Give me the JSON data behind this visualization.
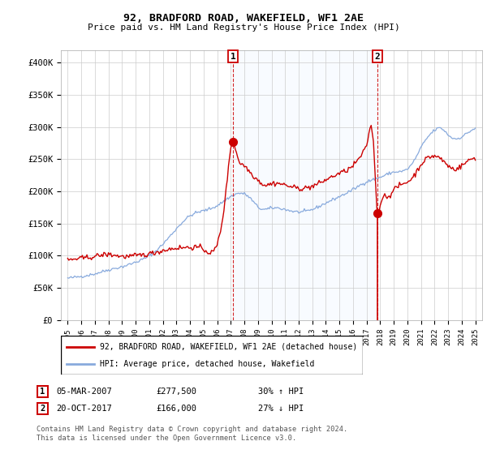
{
  "title": "92, BRADFORD ROAD, WAKEFIELD, WF1 2AE",
  "subtitle": "Price paid vs. HM Land Registry's House Price Index (HPI)",
  "ylabel_ticks": [
    "£0",
    "£50K",
    "£100K",
    "£150K",
    "£200K",
    "£250K",
    "£300K",
    "£350K",
    "£400K"
  ],
  "ytick_values": [
    0,
    50000,
    100000,
    150000,
    200000,
    250000,
    300000,
    350000,
    400000
  ],
  "ylim": [
    0,
    420000
  ],
  "xlim_start": 1994.5,
  "xlim_end": 2025.5,
  "legend_line1": "92, BRADFORD ROAD, WAKEFIELD, WF1 2AE (detached house)",
  "legend_line2": "HPI: Average price, detached house, Wakefield",
  "annotation1_label": "1",
  "annotation1_date": "05-MAR-2007",
  "annotation1_price": "£277,500",
  "annotation1_hpi": "30% ↑ HPI",
  "annotation2_label": "2",
  "annotation2_date": "20-OCT-2017",
  "annotation2_price": "£166,000",
  "annotation2_hpi": "27% ↓ HPI",
  "footer": "Contains HM Land Registry data © Crown copyright and database right 2024.\nThis data is licensed under the Open Government Licence v3.0.",
  "line1_color": "#cc0000",
  "line2_color": "#88aadd",
  "shade_color": "#ddeeff",
  "sale1_x": 2007.18,
  "sale1_y": 277500,
  "sale2_x": 2017.8,
  "sale2_y": 166000,
  "vline1_x": 2007.18,
  "vline2_x": 2017.8
}
